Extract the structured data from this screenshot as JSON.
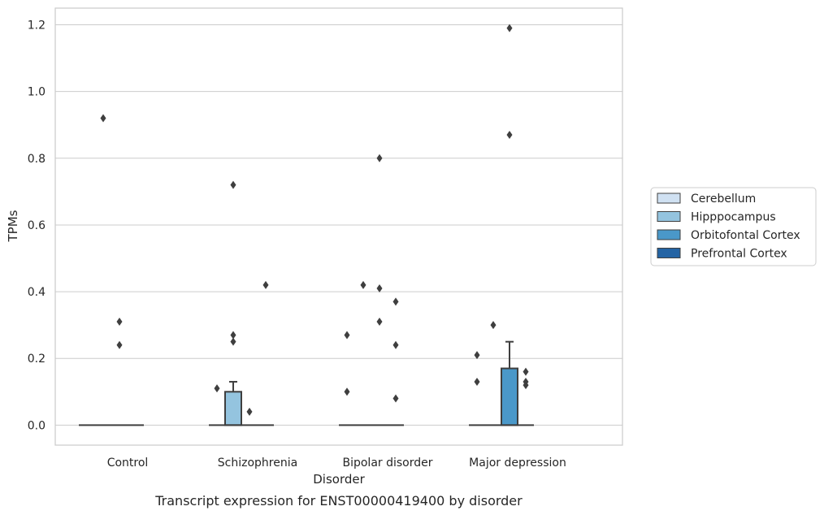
{
  "chart_data": {
    "type": "box",
    "title": "",
    "caption": "Transcript expression for ENST00000419400 by disorder",
    "xlabel": "Disorder",
    "ylabel": "TPMs",
    "categories": [
      "Control",
      "Schizophrenia",
      "Bipolar disorder",
      "Major depression"
    ],
    "ylim": [
      -0.06,
      1.25
    ],
    "yticks": [
      0.0,
      0.2,
      0.4,
      0.6,
      0.8,
      1.0,
      1.2
    ],
    "ytick_labels": [
      "0.0",
      "0.2",
      "0.4",
      "0.6",
      "0.8",
      "1.0",
      "1.2"
    ],
    "grid": "horizontal",
    "legend_position": "right",
    "series": [
      {
        "name": "Cerebellum",
        "color": "#d0e1f2",
        "boxes": [
          {
            "q1": 0,
            "median": 0,
            "q3": 0,
            "whisker_low": 0,
            "whisker_high": 0,
            "outliers": []
          },
          {
            "q1": 0,
            "median": 0,
            "q3": 0,
            "whisker_low": 0,
            "whisker_high": 0,
            "outliers": [
              0.11
            ]
          },
          {
            "q1": 0,
            "median": 0,
            "q3": 0,
            "whisker_low": 0,
            "whisker_high": 0,
            "outliers": [
              0.27,
              0.1
            ]
          },
          {
            "q1": 0,
            "median": 0,
            "q3": 0,
            "whisker_low": 0,
            "whisker_high": 0,
            "outliers": [
              0.21,
              0.13
            ]
          }
        ]
      },
      {
        "name": "Hipppocampus",
        "color": "#94c4df",
        "boxes": [
          {
            "q1": 0,
            "median": 0,
            "q3": 0,
            "whisker_low": 0,
            "whisker_high": 0,
            "outliers": [
              0.92
            ]
          },
          {
            "q1": 0,
            "median": 0,
            "q3": 0.1,
            "whisker_low": 0,
            "whisker_high": 0.13,
            "outliers": [
              0.72,
              0.27,
              0.25
            ]
          },
          {
            "q1": 0,
            "median": 0,
            "q3": 0,
            "whisker_low": 0,
            "whisker_high": 0,
            "outliers": [
              0.42
            ]
          },
          {
            "q1": 0,
            "median": 0,
            "q3": 0,
            "whisker_low": 0,
            "whisker_high": 0,
            "outliers": [
              0.3
            ]
          }
        ]
      },
      {
        "name": "Orbitofontal Cortex",
        "color": "#4a98c9",
        "boxes": [
          {
            "q1": 0,
            "median": 0,
            "q3": 0,
            "whisker_low": 0,
            "whisker_high": 0,
            "outliers": [
              0.31,
              0.24
            ]
          },
          {
            "q1": 0,
            "median": 0,
            "q3": 0,
            "whisker_low": 0,
            "whisker_high": 0,
            "outliers": [
              0.04
            ]
          },
          {
            "q1": 0,
            "median": 0,
            "q3": 0,
            "whisker_low": 0,
            "whisker_high": 0,
            "outliers": [
              0.8,
              0.41,
              0.31
            ]
          },
          {
            "q1": 0,
            "median": 0,
            "q3": 0.17,
            "whisker_low": 0,
            "whisker_high": 0.25,
            "outliers": [
              1.19,
              0.87
            ]
          }
        ]
      },
      {
        "name": "Prefrontal Cortex",
        "color": "#2464a4",
        "boxes": [
          {
            "q1": 0,
            "median": 0,
            "q3": 0,
            "whisker_low": 0,
            "whisker_high": 0,
            "outliers": []
          },
          {
            "q1": 0,
            "median": 0,
            "q3": 0,
            "whisker_low": 0,
            "whisker_high": 0,
            "outliers": [
              0.42
            ]
          },
          {
            "q1": 0,
            "median": 0,
            "q3": 0,
            "whisker_low": 0,
            "whisker_high": 0,
            "outliers": [
              0.37,
              0.24,
              0.08
            ]
          },
          {
            "q1": 0,
            "median": 0,
            "q3": 0,
            "whisker_low": 0,
            "whisker_high": 0,
            "outliers": [
              0.16,
              0.13,
              0.12
            ]
          }
        ]
      }
    ]
  }
}
